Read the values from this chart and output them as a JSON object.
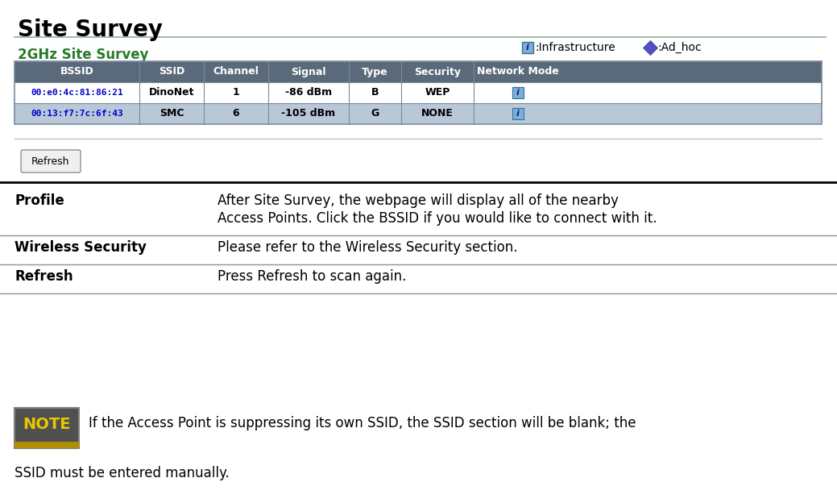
{
  "title": "Site Survey",
  "subtitle": "2GHz Site Survey",
  "legend_infra": ":Infrastructure",
  "legend_adhoc": ":Ad_hoc",
  "table_headers": [
    "BSSID",
    "SSID",
    "Channel",
    "Signal",
    "Type",
    "Security",
    "Network Mode"
  ],
  "table_rows": [
    [
      "00:e0:4c:81:86:21",
      "DinoNet",
      "1",
      "-86 dBm",
      "B",
      "WEP",
      "i"
    ],
    [
      "00:13:f7:7c:6f:43",
      "SMC",
      "6",
      "-105 dBm",
      "G",
      "NONE",
      "i"
    ]
  ],
  "header_bg": "#5a6a7a",
  "header_fg": "#ffffff",
  "row_bg_odd": "#ffffff",
  "row_bg_even": "#b8c8d8",
  "table_border": "#7a8a9a",
  "bssid_color": "#0000cc",
  "infra_icon_bg": "#7ab0d8",
  "desc_rows": [
    {
      "term": "Profile",
      "desc": [
        "After Site Survey, the webpage will display all of the nearby",
        "Access Points. Click the BSSID if you would like to connect with it."
      ]
    },
    {
      "term": "Wireless Security",
      "desc": [
        "Please refer to the Wireless Security section."
      ]
    },
    {
      "term": "Refresh",
      "desc": [
        "Press Refresh to scan again."
      ]
    }
  ],
  "note_text1": "If the Access Point is suppressing its own SSID, the SSID section will be blank; the",
  "note_text2": "SSID must be entered manually.",
  "note_box_bg": "#505050",
  "note_box_border": "#808080",
  "note_label": "NOTE",
  "note_label_color": "#e8c800",
  "note_bar_color": "#b09000",
  "bg_color": "#ffffff",
  "title_color": "#000000",
  "subtitle_color": "#2a7a2a",
  "body_color": "#000000",
  "title_underline_color": "#90b090",
  "sep1_color": "#c0c0c0",
  "sep2_color": "#000000",
  "desc_sep_color": "#909090"
}
